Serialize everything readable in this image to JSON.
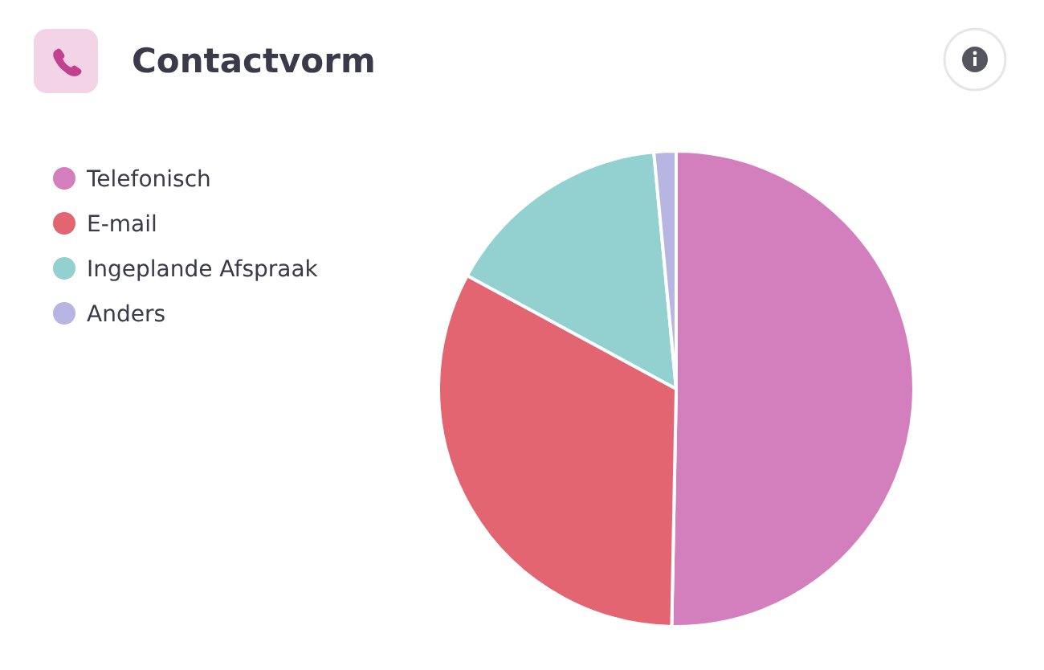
{
  "chart_data": {
    "type": "pie",
    "title": "Contactvorm",
    "categories": [
      "Telefonisch",
      "E-mail",
      "Ingeplande Afspraak",
      "Anders"
    ],
    "values": [
      50.3,
      32.6,
      15.6,
      1.5
    ],
    "colors": [
      "#d47fbd",
      "#e36572",
      "#93d0d0",
      "#b9b5e3"
    ],
    "legend": "left"
  }
}
